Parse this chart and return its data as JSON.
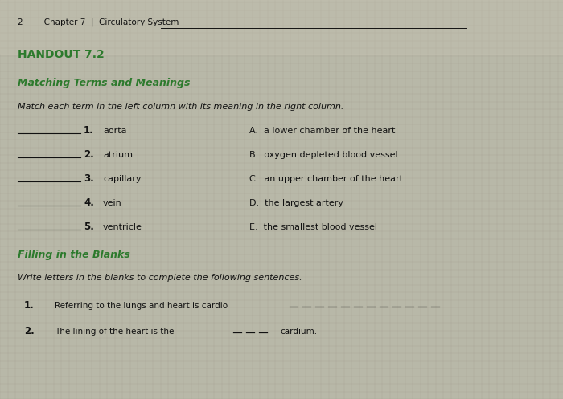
{
  "bg_color": "#b8b8a8",
  "page_bg": "#d8d4c4",
  "header_text": "2        Chapter 7  |  Circulatory System",
  "handout_title": "HANDOUT 7.2",
  "section1_title": "Matching Terms and Meanings",
  "section1_instruction": "Match each term in the left column with its meaning in the right column.",
  "terms": [
    "aorta",
    "atrium",
    "capillary",
    "vein",
    "ventricle"
  ],
  "meanings": [
    "A.  a lower chamber of the heart",
    "B.  oxygen depleted blood vessel",
    "C.  an upper chamber of the heart",
    "D.  the largest artery",
    "E.  the smallest blood vessel"
  ],
  "section2_title": "Filling in the Blanks",
  "section2_instruction": "Write letters in the blanks to complete the following sentences.",
  "green_color": "#2d7a2d",
  "dark_color": "#111111",
  "grid_color": "#a0988a",
  "figwidth": 7.0,
  "figheight": 4.97,
  "dpi": 100
}
